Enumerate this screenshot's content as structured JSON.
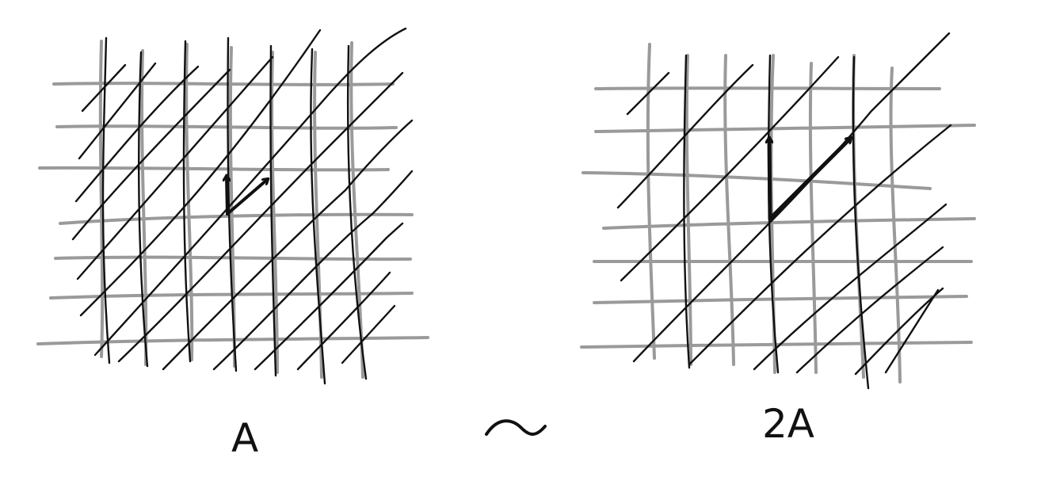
{
  "colors": {
    "background": "#ffffff",
    "grid_gray": "#9a9a9a",
    "ink": "#111111"
  },
  "left_panel": {
    "label": "A",
    "description_hidden": ""
  },
  "right_panel": {
    "label": "2A"
  },
  "relation_symbol": "~"
}
